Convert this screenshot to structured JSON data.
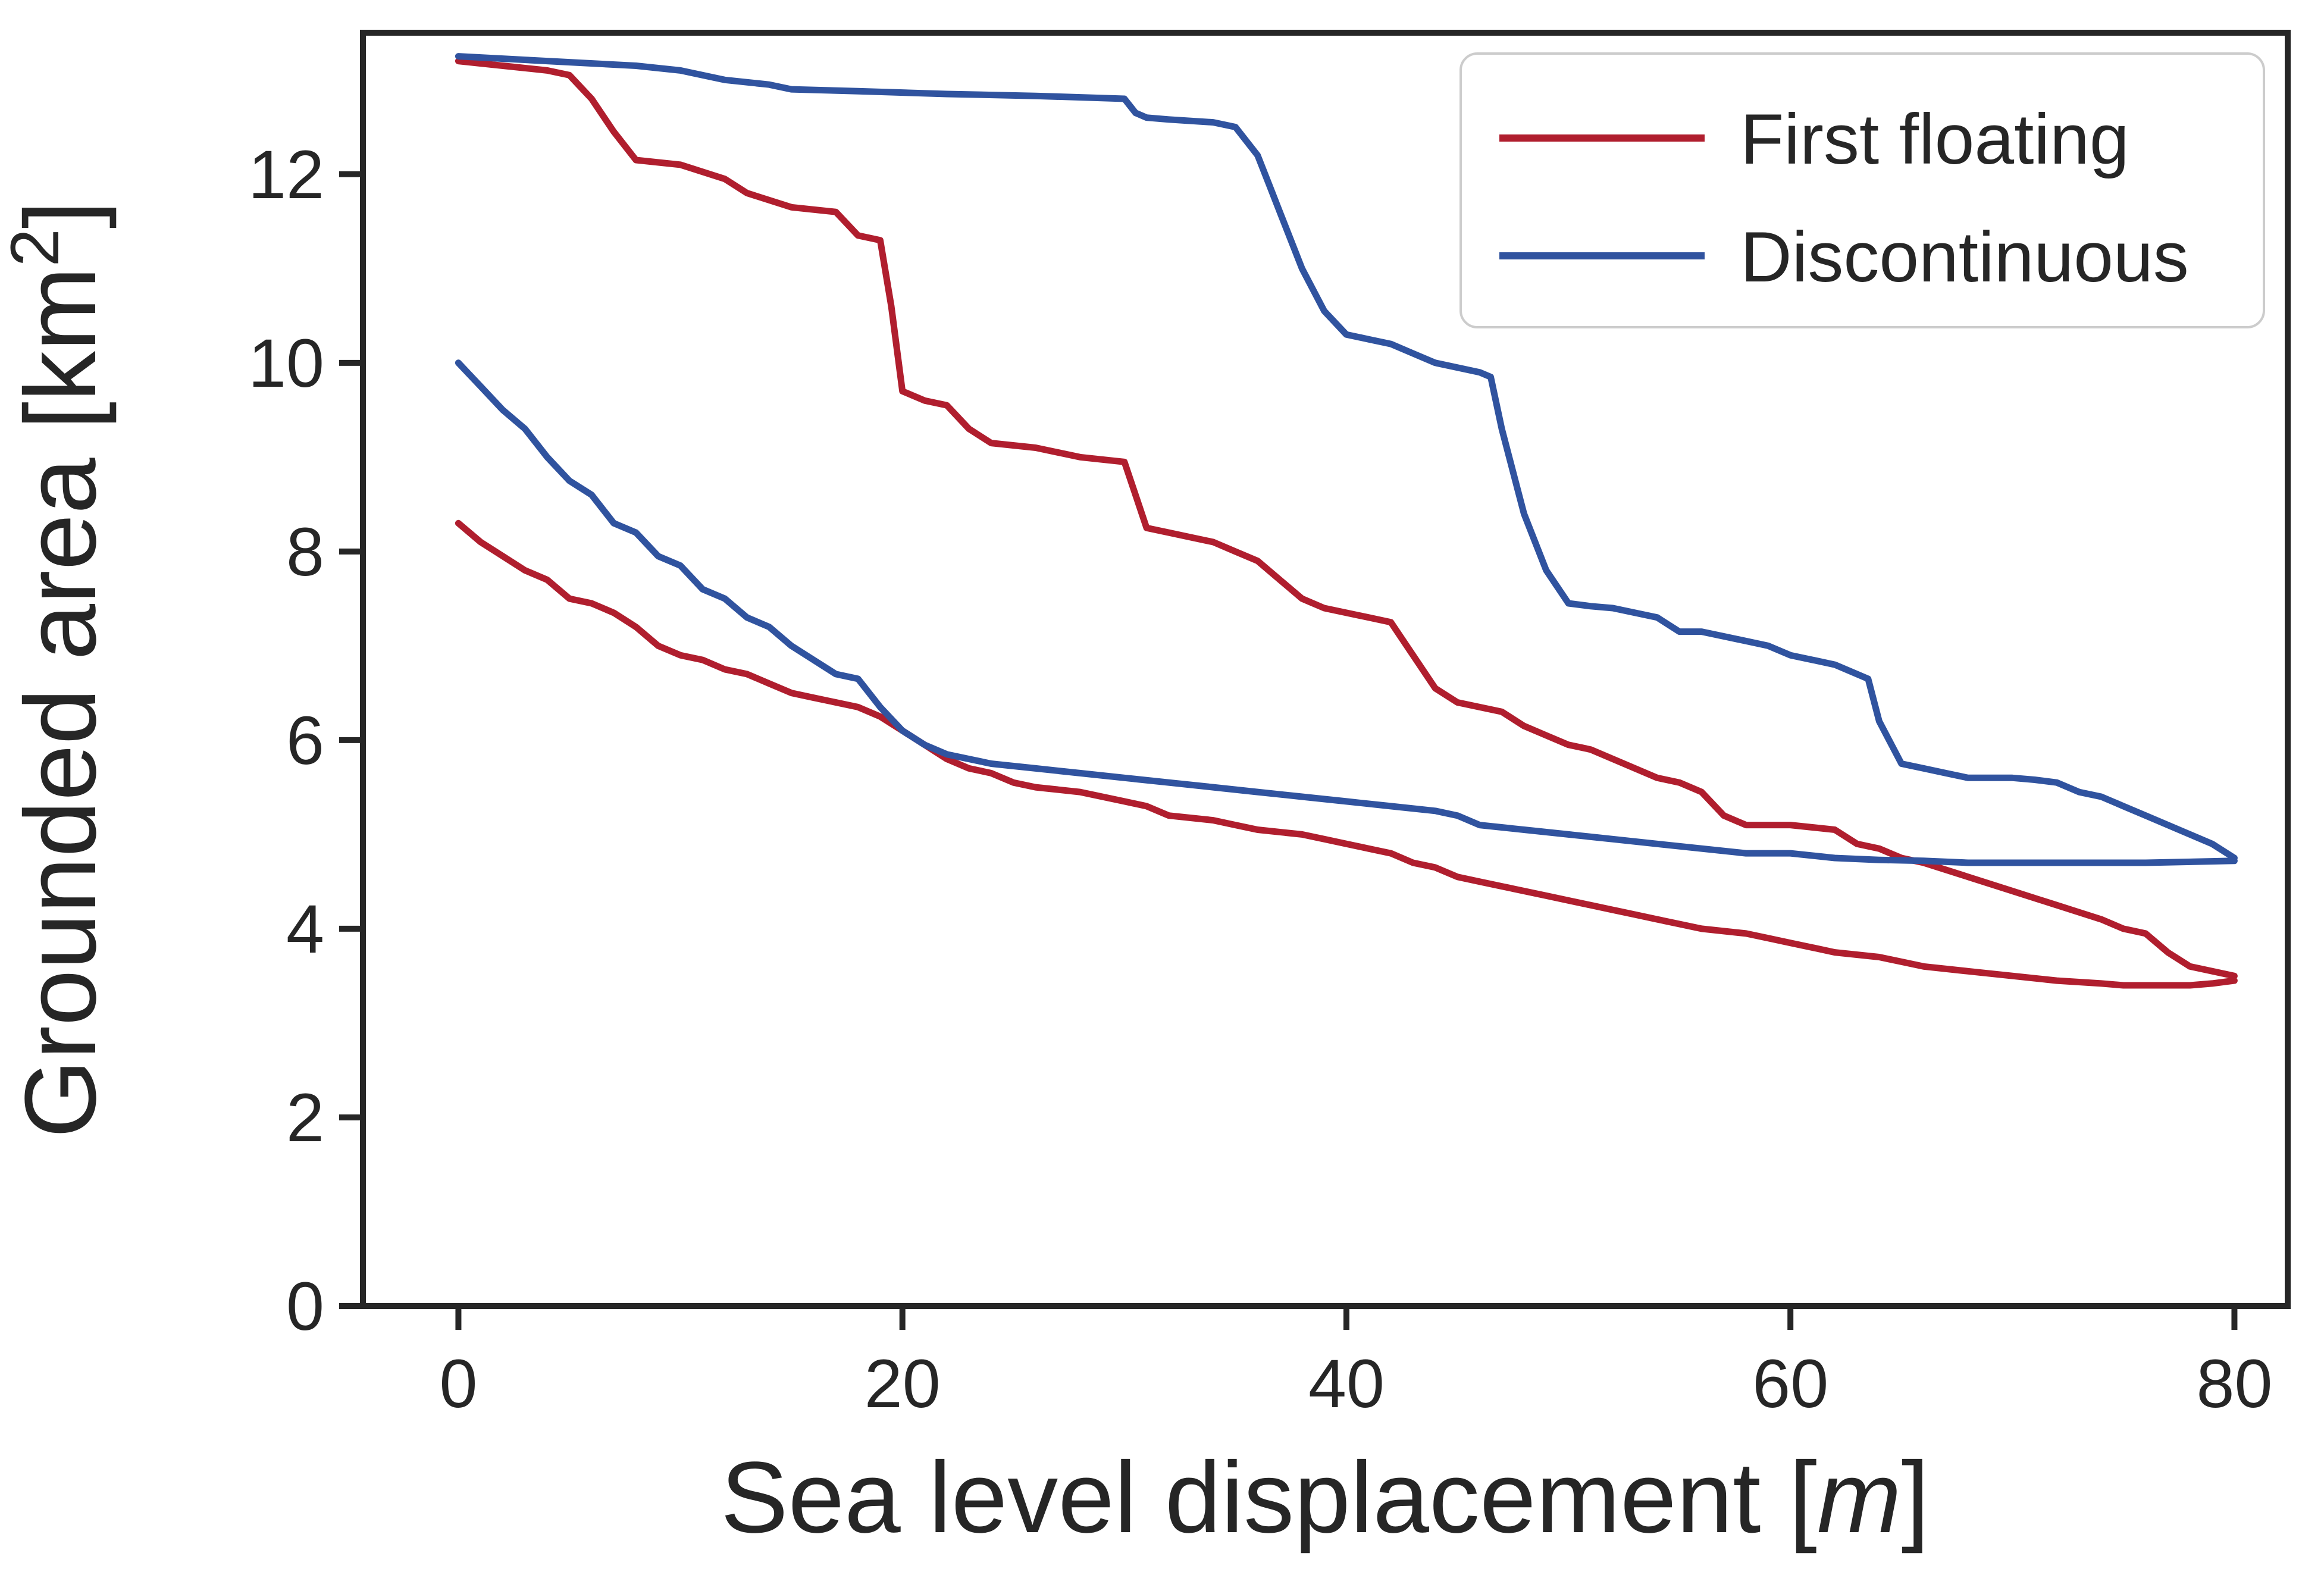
{
  "figure": {
    "background_color": "#ffffff",
    "spine_color": "#262626",
    "text_color": "#262626"
  },
  "chart_data": {
    "type": "line",
    "title": "",
    "xlabel": {
      "prefix": "Sea level displacement [",
      "italic": "m",
      "suffix": "]"
    },
    "ylabel": {
      "prefix": "Grounded area [km",
      "sup": "2",
      "suffix": "]"
    },
    "xlim": [
      -4.3,
      82.4
    ],
    "ylim": [
      0,
      13.5
    ],
    "x_ticks": [
      0,
      20,
      40,
      60,
      80
    ],
    "y_ticks": [
      0,
      2,
      4,
      6,
      8,
      10,
      12
    ],
    "grid": "off",
    "legend_position": "upper right",
    "colors": {
      "first_floating": "#b01e2e",
      "discontinuous": "#30539f"
    },
    "legend": [
      {
        "label": "First floating",
        "color": "#b01e2e"
      },
      {
        "label": "Discontinuous",
        "color": "#30539f"
      }
    ],
    "series": [
      {
        "name": "first-floating-upper",
        "legend_label": "First floating",
        "color": "#b01e2e",
        "points": [
          [
            0,
            13.2
          ],
          [
            2,
            13.15
          ],
          [
            4,
            13.1
          ],
          [
            5,
            13.05
          ],
          [
            6,
            12.8
          ],
          [
            7,
            12.45
          ],
          [
            8,
            12.15
          ],
          [
            10,
            12.1
          ],
          [
            12,
            11.95
          ],
          [
            13,
            11.8
          ],
          [
            15,
            11.65
          ],
          [
            17,
            11.6
          ],
          [
            18,
            11.35
          ],
          [
            19,
            11.3
          ],
          [
            19.5,
            10.6
          ],
          [
            20,
            9.7
          ],
          [
            21,
            9.6
          ],
          [
            22,
            9.55
          ],
          [
            23,
            9.3
          ],
          [
            24,
            9.15
          ],
          [
            26,
            9.1
          ],
          [
            28,
            9.0
          ],
          [
            30,
            8.95
          ],
          [
            30.5,
            8.6
          ],
          [
            31,
            8.25
          ],
          [
            32,
            8.2
          ],
          [
            33,
            8.15
          ],
          [
            34,
            8.1
          ],
          [
            35,
            8.0
          ],
          [
            36,
            7.9
          ],
          [
            37,
            7.7
          ],
          [
            38,
            7.5
          ],
          [
            39,
            7.4
          ],
          [
            41,
            7.3
          ],
          [
            42,
            7.25
          ],
          [
            43,
            6.9
          ],
          [
            44,
            6.55
          ],
          [
            45,
            6.4
          ],
          [
            46,
            6.35
          ],
          [
            47,
            6.3
          ],
          [
            48,
            6.15
          ],
          [
            49,
            6.05
          ],
          [
            50,
            5.95
          ],
          [
            51,
            5.9
          ],
          [
            52,
            5.8
          ],
          [
            53,
            5.7
          ],
          [
            54,
            5.6
          ],
          [
            55,
            5.55
          ],
          [
            56,
            5.45
          ],
          [
            57,
            5.2
          ],
          [
            58,
            5.1
          ],
          [
            60,
            5.1
          ],
          [
            62,
            5.05
          ],
          [
            63,
            4.9
          ],
          [
            64,
            4.85
          ],
          [
            65,
            4.75
          ],
          [
            66,
            4.7
          ],
          [
            68,
            4.55
          ],
          [
            70,
            4.4
          ],
          [
            72,
            4.25
          ],
          [
            74,
            4.1
          ],
          [
            75,
            4.0
          ],
          [
            76,
            3.95
          ],
          [
            77,
            3.75
          ],
          [
            78,
            3.6
          ],
          [
            79,
            3.55
          ],
          [
            80,
            3.5
          ]
        ]
      },
      {
        "name": "first-floating-lower",
        "legend_label": "First floating",
        "color": "#b01e2e",
        "points": [
          [
            0,
            8.3
          ],
          [
            1,
            8.1
          ],
          [
            2,
            7.95
          ],
          [
            3,
            7.8
          ],
          [
            4,
            7.7
          ],
          [
            5,
            7.5
          ],
          [
            6,
            7.45
          ],
          [
            7,
            7.35
          ],
          [
            8,
            7.2
          ],
          [
            9,
            7.0
          ],
          [
            10,
            6.9
          ],
          [
            11,
            6.85
          ],
          [
            12,
            6.75
          ],
          [
            13,
            6.7
          ],
          [
            14,
            6.6
          ],
          [
            15,
            6.5
          ],
          [
            16,
            6.45
          ],
          [
            17,
            6.4
          ],
          [
            18,
            6.35
          ],
          [
            19,
            6.25
          ],
          [
            20,
            6.1
          ],
          [
            21,
            5.95
          ],
          [
            22,
            5.8
          ],
          [
            23,
            5.7
          ],
          [
            24,
            5.65
          ],
          [
            25,
            5.55
          ],
          [
            26,
            5.5
          ],
          [
            28,
            5.45
          ],
          [
            29,
            5.4
          ],
          [
            30,
            5.35
          ],
          [
            31,
            5.3
          ],
          [
            32,
            5.2
          ],
          [
            34,
            5.15
          ],
          [
            35,
            5.1
          ],
          [
            36,
            5.05
          ],
          [
            38,
            5.0
          ],
          [
            39,
            4.95
          ],
          [
            40,
            4.9
          ],
          [
            41,
            4.85
          ],
          [
            42,
            4.8
          ],
          [
            43,
            4.7
          ],
          [
            44,
            4.65
          ],
          [
            45,
            4.55
          ],
          [
            46,
            4.5
          ],
          [
            47,
            4.45
          ],
          [
            48,
            4.4
          ],
          [
            49,
            4.35
          ],
          [
            50,
            4.3
          ],
          [
            51,
            4.25
          ],
          [
            52,
            4.2
          ],
          [
            53,
            4.15
          ],
          [
            54,
            4.1
          ],
          [
            55,
            4.05
          ],
          [
            56,
            4.0
          ],
          [
            58,
            3.95
          ],
          [
            59,
            3.9
          ],
          [
            60,
            3.85
          ],
          [
            61,
            3.8
          ],
          [
            62,
            3.75
          ],
          [
            64,
            3.7
          ],
          [
            65,
            3.65
          ],
          [
            66,
            3.6
          ],
          [
            68,
            3.55
          ],
          [
            70,
            3.5
          ],
          [
            72,
            3.45
          ],
          [
            74,
            3.42
          ],
          [
            75,
            3.4
          ],
          [
            77,
            3.4
          ],
          [
            78,
            3.4
          ],
          [
            79,
            3.42
          ],
          [
            80,
            3.45
          ]
        ]
      },
      {
        "name": "discontinuous-upper",
        "legend_label": "Discontinuous",
        "color": "#30539f",
        "points": [
          [
            0,
            13.25
          ],
          [
            4,
            13.2
          ],
          [
            8,
            13.15
          ],
          [
            10,
            13.1
          ],
          [
            12,
            13.0
          ],
          [
            14,
            12.95
          ],
          [
            15,
            12.9
          ],
          [
            18,
            12.88
          ],
          [
            22,
            12.85
          ],
          [
            26,
            12.83
          ],
          [
            30,
            12.8
          ],
          [
            30.5,
            12.65
          ],
          [
            31,
            12.6
          ],
          [
            32,
            12.58
          ],
          [
            34,
            12.55
          ],
          [
            35,
            12.5
          ],
          [
            36,
            12.2
          ],
          [
            36.5,
            11.9
          ],
          [
            37,
            11.6
          ],
          [
            38,
            11.0
          ],
          [
            39,
            10.55
          ],
          [
            40,
            10.3
          ],
          [
            41,
            10.25
          ],
          [
            42,
            10.2
          ],
          [
            43,
            10.1
          ],
          [
            44,
            10.0
          ],
          [
            45,
            9.95
          ],
          [
            46,
            9.9
          ],
          [
            46.5,
            9.85
          ],
          [
            47,
            9.3
          ],
          [
            48,
            8.4
          ],
          [
            49,
            7.8
          ],
          [
            50,
            7.45
          ],
          [
            51,
            7.42
          ],
          [
            52,
            7.4
          ],
          [
            53,
            7.35
          ],
          [
            54,
            7.3
          ],
          [
            55,
            7.15
          ],
          [
            56,
            7.15
          ],
          [
            57,
            7.1
          ],
          [
            58,
            7.05
          ],
          [
            59,
            7.0
          ],
          [
            60,
            6.9
          ],
          [
            61,
            6.85
          ],
          [
            62,
            6.8
          ],
          [
            63,
            6.7
          ],
          [
            63.5,
            6.65
          ],
          [
            64,
            6.2
          ],
          [
            65,
            5.75
          ],
          [
            66,
            5.7
          ],
          [
            67,
            5.65
          ],
          [
            68,
            5.6
          ],
          [
            70,
            5.6
          ],
          [
            71,
            5.58
          ],
          [
            72,
            5.55
          ],
          [
            73,
            5.45
          ],
          [
            74,
            5.4
          ],
          [
            75,
            5.3
          ],
          [
            76,
            5.2
          ],
          [
            77,
            5.1
          ],
          [
            78,
            5.0
          ],
          [
            79,
            4.9
          ],
          [
            80,
            4.75
          ]
        ]
      },
      {
        "name": "discontinuous-lower",
        "legend_label": "Discontinuous",
        "color": "#30539f",
        "points": [
          [
            0,
            10.0
          ],
          [
            1,
            9.75
          ],
          [
            2,
            9.5
          ],
          [
            3,
            9.3
          ],
          [
            4,
            9.0
          ],
          [
            5,
            8.75
          ],
          [
            6,
            8.6
          ],
          [
            7,
            8.3
          ],
          [
            8,
            8.2
          ],
          [
            9,
            7.95
          ],
          [
            10,
            7.85
          ],
          [
            11,
            7.6
          ],
          [
            12,
            7.5
          ],
          [
            13,
            7.3
          ],
          [
            14,
            7.2
          ],
          [
            15,
            7.0
          ],
          [
            16,
            6.85
          ],
          [
            17,
            6.7
          ],
          [
            18,
            6.65
          ],
          [
            19,
            6.35
          ],
          [
            20,
            6.1
          ],
          [
            21,
            5.95
          ],
          [
            22,
            5.85
          ],
          [
            23,
            5.8
          ],
          [
            24,
            5.75
          ],
          [
            26,
            5.7
          ],
          [
            28,
            5.65
          ],
          [
            30,
            5.6
          ],
          [
            32,
            5.55
          ],
          [
            34,
            5.5
          ],
          [
            36,
            5.45
          ],
          [
            38,
            5.4
          ],
          [
            40,
            5.35
          ],
          [
            42,
            5.3
          ],
          [
            44,
            5.25
          ],
          [
            45,
            5.2
          ],
          [
            46,
            5.1
          ],
          [
            48,
            5.05
          ],
          [
            50,
            5.0
          ],
          [
            52,
            4.95
          ],
          [
            54,
            4.9
          ],
          [
            56,
            4.85
          ],
          [
            58,
            4.8
          ],
          [
            60,
            4.8
          ],
          [
            62,
            4.75
          ],
          [
            64,
            4.73
          ],
          [
            66,
            4.72
          ],
          [
            68,
            4.7
          ],
          [
            72,
            4.7
          ],
          [
            76,
            4.7
          ],
          [
            80,
            4.72
          ]
        ]
      }
    ]
  }
}
